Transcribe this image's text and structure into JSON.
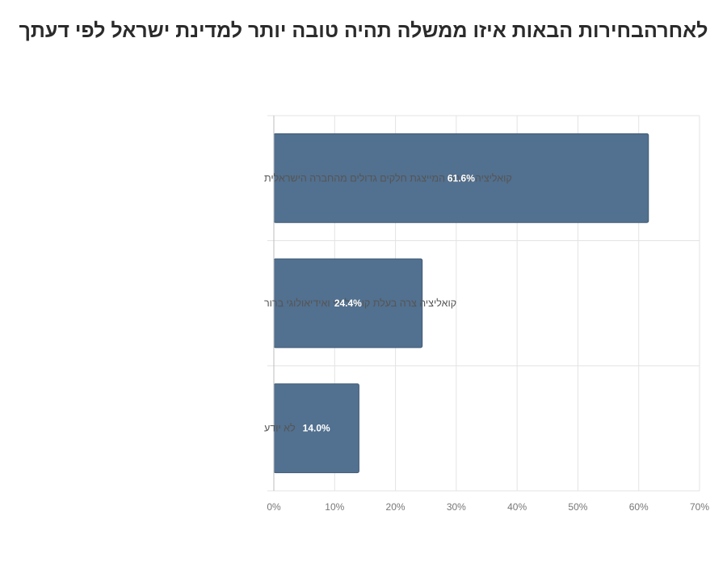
{
  "chart_data": {
    "type": "bar",
    "orientation": "horizontal",
    "title": "לאחרהבחירות הבאות איזו ממשלה תהיה טובה יותר למדינת ישראל לפי דעתך",
    "categories": [
      "קואליציה רחבה המייצגת חלקים גדולים מהחברה הישראלית",
      "קואליציה צרה בעלת קו פוליטי ואידיאולוגי ברור",
      "לא יודע"
    ],
    "values": [
      61.6,
      24.4,
      14.0
    ],
    "data_labels": [
      "61.6%",
      "24.4%",
      "14.0%"
    ],
    "xlim": [
      0,
      70
    ],
    "x_ticks": [
      0,
      10,
      20,
      30,
      40,
      50,
      60,
      70
    ],
    "x_tick_labels": [
      "0%",
      "10%",
      "20%",
      "30%",
      "40%",
      "50%",
      "60%",
      "70%"
    ],
    "grid": true,
    "legend": "none",
    "colors": {
      "bar": "#52708f",
      "bar_stroke": "#3f5a76",
      "grid": "#e3e3e3",
      "axis": "#bdbdbd"
    }
  }
}
